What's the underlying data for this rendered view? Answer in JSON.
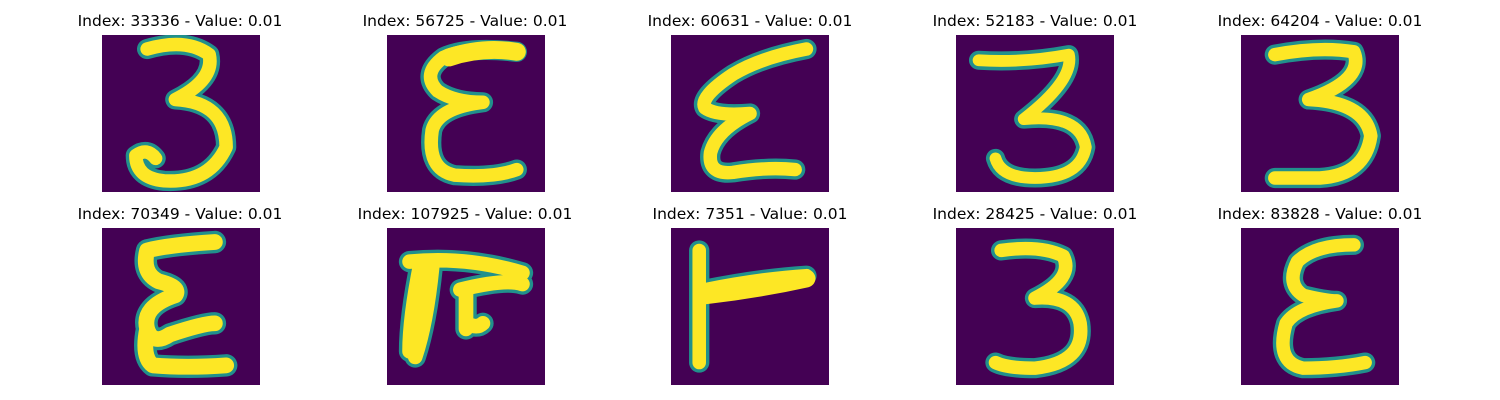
{
  "palette": {
    "background": "#440154",
    "mid_low": "#3b528b",
    "mid": "#21908c",
    "mid_high": "#5dc863",
    "foreground": "#fde725"
  },
  "panels": [
    {
      "index": "33336",
      "value": "0.01",
      "title": "Index: 33336 - Value: 0.01",
      "glyph": "3"
    },
    {
      "index": "56725",
      "value": "0.01",
      "title": "Index: 56725 - Value: 0.01",
      "glyph": "epsilon"
    },
    {
      "index": "60631",
      "value": "0.01",
      "title": "Index: 60631 - Value: 0.01",
      "glyph": "epsilon"
    },
    {
      "index": "52183",
      "value": "0.01",
      "title": "Index: 52183 - Value: 0.01",
      "glyph": "3"
    },
    {
      "index": "64204",
      "value": "0.01",
      "title": "Index: 64204 - Value: 0.01",
      "glyph": "3"
    },
    {
      "index": "70349",
      "value": "0.01",
      "title": "Index: 70349 - Value: 0.01",
      "glyph": "epsilon"
    },
    {
      "index": "107925",
      "value": "0.01",
      "title": "Index: 107925 - Value: 0.01",
      "glyph": "pi-like"
    },
    {
      "index": "7351",
      "value": "0.01",
      "title": "Index: 7351 - Value: 0.01",
      "glyph": "T-rotated"
    },
    {
      "index": "28425",
      "value": "0.01",
      "title": "Index: 28425 - Value: 0.01",
      "glyph": "3"
    },
    {
      "index": "83828",
      "value": "0.01",
      "title": "Index: 83828 - Value: 0.01",
      "glyph": "epsilon"
    }
  ]
}
